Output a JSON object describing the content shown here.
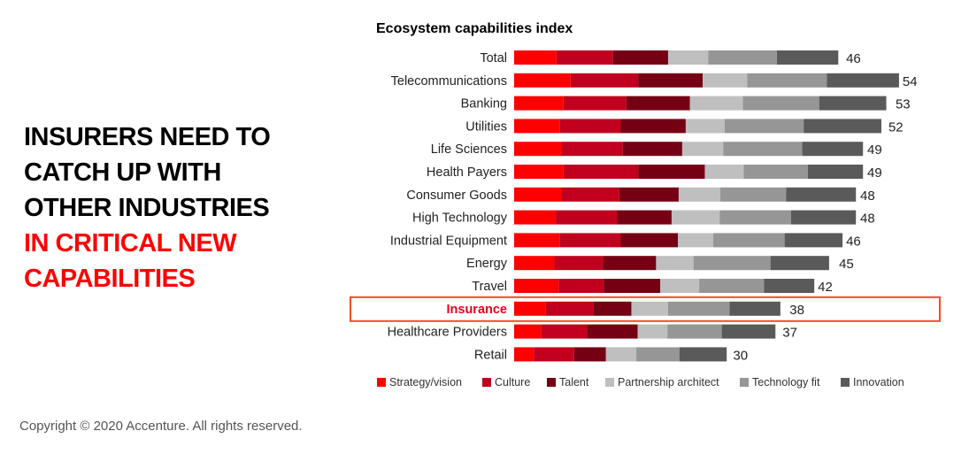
{
  "headline": {
    "black_lines": [
      "INSURERS NEED TO",
      "CATCH UP WITH",
      "OTHER INDUSTRIES"
    ],
    "red_lines": [
      "IN CRITICAL NEW",
      "CAPABILITIES"
    ]
  },
  "copyright": "Copyright © 2020 Accenture. All rights reserved.",
  "highlight": {
    "category": "Insurance",
    "color": "#f04e23",
    "label_color": "#e8001c"
  },
  "chart_data": {
    "type": "bar",
    "orientation": "horizontal",
    "stacked": true,
    "title": "Ecosystem capabilities index",
    "xlabel": "",
    "ylabel": "",
    "grid": false,
    "legend_position": "bottom",
    "categories": [
      "Total",
      "Telecommunications",
      "Banking",
      "Utilities",
      "Life Sciences",
      "Health Payers",
      "Consumer Goods",
      "High Technology",
      "Industrial Equipment",
      "Energy",
      "Travel",
      "Insurance",
      "Healthcare Providers",
      "Retail"
    ],
    "totals": [
      46,
      54,
      53,
      52,
      49,
      49,
      48,
      48,
      46,
      45,
      42,
      38,
      37,
      30
    ],
    "series": [
      {
        "name": "Strategy/vision",
        "color": "#ff0000",
        "values": [
          6.0,
          8.0,
          7.0,
          6.5,
          6.7,
          7.0,
          6.7,
          5.9,
          6.5,
          5.7,
          6.3,
          4.5,
          3.8,
          2.8
        ]
      },
      {
        "name": "Culture",
        "color": "#c0001e",
        "values": [
          8.0,
          9.6,
          8.9,
          8.6,
          8.7,
          10.6,
          8.2,
          8.7,
          8.6,
          6.9,
          6.4,
          6.7,
          6.6,
          5.7
        ]
      },
      {
        "name": "Talent",
        "color": "#750014",
        "values": [
          7.8,
          9.1,
          9.0,
          9.2,
          8.4,
          9.4,
          8.4,
          7.7,
          8.1,
          7.5,
          8.0,
          5.4,
          7.1,
          4.5
        ]
      },
      {
        "name": "Partnership architect",
        "color": "#bfbfbf",
        "values": [
          5.7,
          6.3,
          7.5,
          5.5,
          5.8,
          5.5,
          5.9,
          6.8,
          5.0,
          5.3,
          5.5,
          5.2,
          4.2,
          4.3
        ]
      },
      {
        "name": "Technology fit",
        "color": "#969696",
        "values": [
          9.7,
          11.3,
          10.8,
          11.2,
          11.2,
          9.1,
          9.3,
          10.1,
          10.1,
          10.9,
          9.2,
          8.7,
          7.7,
          6.1
        ]
      },
      {
        "name": "Innovation",
        "color": "#5a5a5a",
        "values": [
          8.7,
          10.2,
          9.5,
          11.0,
          8.6,
          7.8,
          9.9,
          9.2,
          8.2,
          8.3,
          7.1,
          7.2,
          7.6,
          6.7
        ]
      }
    ]
  }
}
